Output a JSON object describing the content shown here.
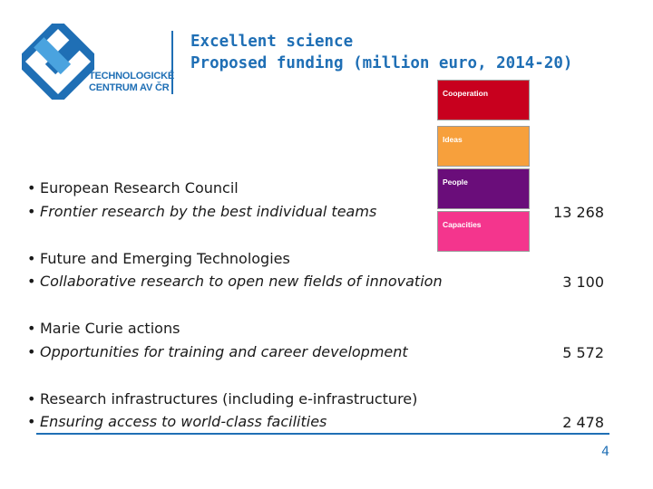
{
  "logo": {
    "line1": "TECHNOLOGICKÉ",
    "line2": "CENTRUM AV ČR",
    "color": "#1f6fb5"
  },
  "header": {
    "title_line1": "Excellent science",
    "title_line2": "Proposed funding (million euro, 2014-20)"
  },
  "legend": {
    "cooperation": "Cooperation",
    "ideas": "Ideas",
    "people": "People",
    "capacities": "Capacities"
  },
  "items": [
    {
      "title": "European Research Council",
      "subtitle": "Frontier research by the best individual teams",
      "amount": "13 268"
    },
    {
      "title": "Future and Emerging Technologies",
      "subtitle": "Collaborative research to open new fields of innovation",
      "amount": "3 100"
    },
    {
      "title": "Marie Curie actions",
      "subtitle": "Opportunities for training and career development",
      "amount": "5 572"
    },
    {
      "title": "Research infrastructures (including e-infrastructure)",
      "subtitle": "Ensuring access to world-class facilities",
      "amount": "2 478"
    }
  ],
  "bullet": "•",
  "page_number": "4"
}
